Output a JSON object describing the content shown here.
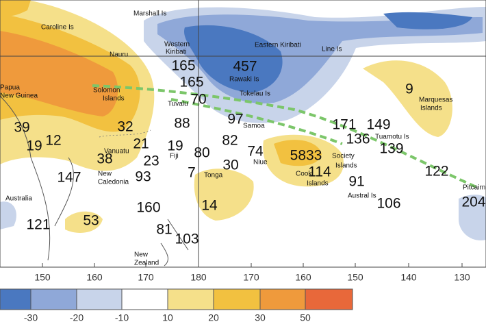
{
  "places": [
    "Marshall Is",
    "Caroline Is",
    "Western",
    "Kiribati",
    "Eastern Kiribati",
    "Line Is",
    "Nauru",
    "Papua",
    "New Guinea",
    "Solomon",
    "Islands",
    "Rawaki Is",
    "Tokelau Is",
    "Tuvalu",
    "Marquesas",
    "Islands",
    "Samoa",
    "Tuamotu Is",
    "Vanuatu",
    "Fiji",
    "Niue",
    "Society",
    "Islands",
    "Cook",
    "Islands",
    "New",
    "Caledonia",
    "Tonga",
    "Australia",
    "Austral Is",
    "Pitcairn",
    "New",
    "Zealand"
  ],
  "values": [
    165,
    457,
    165,
    70,
    9,
    97,
    88,
    171,
    149,
    39,
    32,
    82,
    136,
    19,
    12,
    21,
    19,
    80,
    74,
    5833,
    139,
    23,
    38,
    30,
    114,
    122,
    147,
    93,
    7,
    91,
    204,
    160,
    14,
    106,
    121,
    53,
    81,
    103
  ],
  "longitudes": [
    150,
    160,
    170,
    180,
    170,
    160,
    150,
    140,
    130
  ],
  "legend": [
    -30,
    -20,
    -10,
    10,
    20,
    30,
    50
  ]
}
